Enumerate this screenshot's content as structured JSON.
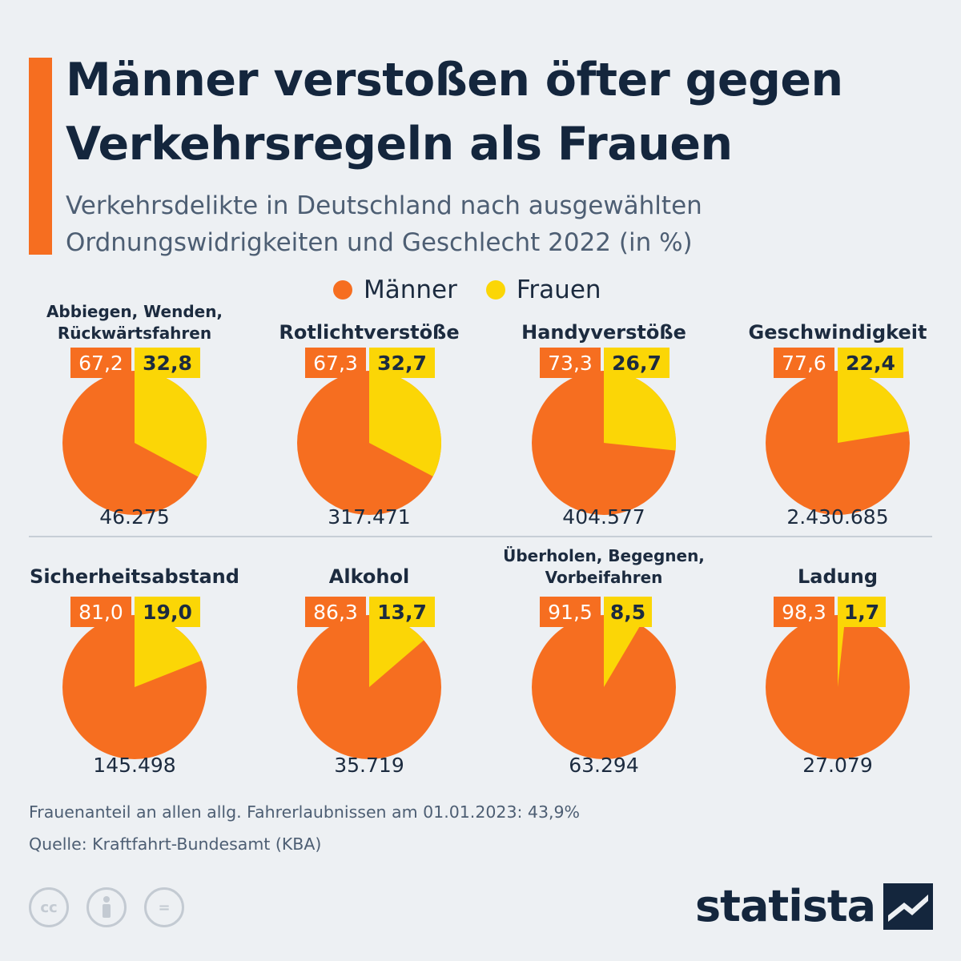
{
  "title_line1": "Männer verstoßen öfter gegen",
  "title_line2": "Verkehrsregeln als Frauen",
  "subtitle_line1": "Verkehrsdelikte in Deutschland nach ausgewählten",
  "subtitle_line2": "Ordnungswidrigkeiten und Geschlecht 2022 (in %)",
  "legend": {
    "men": "Männer",
    "women": "Frauen"
  },
  "colors": {
    "men": "#f66e20",
    "women": "#fbd606",
    "text": "#1c2b3f",
    "background": "#edf0f3"
  },
  "chart_data": {
    "type": "pie",
    "series_names": [
      "Männer",
      "Frauen"
    ],
    "charts": [
      {
        "title": [
          "Abbiegen, Wenden,",
          "Rückwärtsfahren"
        ],
        "men": 67.2,
        "women": 32.8,
        "men_label": "67,2",
        "women_label": "32,8",
        "total": "46.275"
      },
      {
        "title": [
          "Rotlichtverstöße"
        ],
        "men": 67.3,
        "women": 32.7,
        "men_label": "67,3",
        "women_label": "32,7",
        "total": "317.471"
      },
      {
        "title": [
          "Handyverstöße"
        ],
        "men": 73.3,
        "women": 26.7,
        "men_label": "73,3",
        "women_label": "26,7",
        "total": "404.577"
      },
      {
        "title": [
          "Geschwindigkeit"
        ],
        "men": 77.6,
        "women": 22.4,
        "men_label": "77,6",
        "women_label": "22,4",
        "total": "2.430.685"
      },
      {
        "title": [
          "Sicherheitsabstand"
        ],
        "men": 81.0,
        "women": 19.0,
        "men_label": "81,0",
        "women_label": "19,0",
        "total": "145.498"
      },
      {
        "title": [
          "Alkohol"
        ],
        "men": 86.3,
        "women": 13.7,
        "men_label": "86,3",
        "women_label": "13,7",
        "total": "35.719"
      },
      {
        "title": [
          "Überholen, Begegnen,",
          "Vorbeifahren"
        ],
        "men": 91.5,
        "women": 8.5,
        "men_label": "91,5",
        "women_label": "8,5",
        "total": "63.294"
      },
      {
        "title": [
          "Ladung"
        ],
        "men": 98.3,
        "women": 1.7,
        "men_label": "98,3",
        "women_label": "1,7",
        "total": "27.079"
      }
    ]
  },
  "footnote": "Frauenanteil an allen allg. Fahrerlaubnissen am 01.01.2023: 43,9%",
  "source": "Quelle: Kraftfahrt-Bundesamt (KBA)",
  "license_icons": [
    "cc-icon",
    "attribution-icon",
    "no-derivatives-icon"
  ],
  "cc_icon_text": {
    "cc": "cc",
    "nd": "="
  },
  "brand": "statista"
}
